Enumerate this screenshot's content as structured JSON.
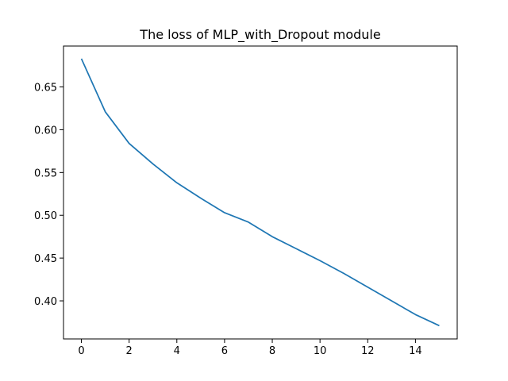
{
  "chart_data": {
    "type": "line",
    "title": "The loss of MLP_with_Dropout module",
    "xlabel": "",
    "ylabel": "",
    "xlim": [
      -0.75,
      15.75
    ],
    "ylim": [
      0.3555,
      0.6978
    ],
    "xticks": [
      0,
      2,
      4,
      6,
      8,
      10,
      12,
      14
    ],
    "xtick_labels": [
      "0",
      "2",
      "4",
      "6",
      "8",
      "10",
      "12",
      "14"
    ],
    "yticks": [
      0.4,
      0.45,
      0.5,
      0.55,
      0.6,
      0.65
    ],
    "ytick_labels": [
      "0.40",
      "0.45",
      "0.50",
      "0.55",
      "0.60",
      "0.65"
    ],
    "grid": false,
    "series": [
      {
        "color": "#1f77b4",
        "x": [
          0,
          1,
          2,
          3,
          4,
          5,
          6,
          7,
          8,
          9,
          10,
          11,
          12,
          13,
          14,
          15
        ],
        "y": [
          0.683,
          0.621,
          0.584,
          0.56,
          0.538,
          0.52,
          0.503,
          0.492,
          0.475,
          0.461,
          0.447,
          0.432,
          0.416,
          0.4,
          0.384,
          0.371
        ]
      }
    ]
  }
}
